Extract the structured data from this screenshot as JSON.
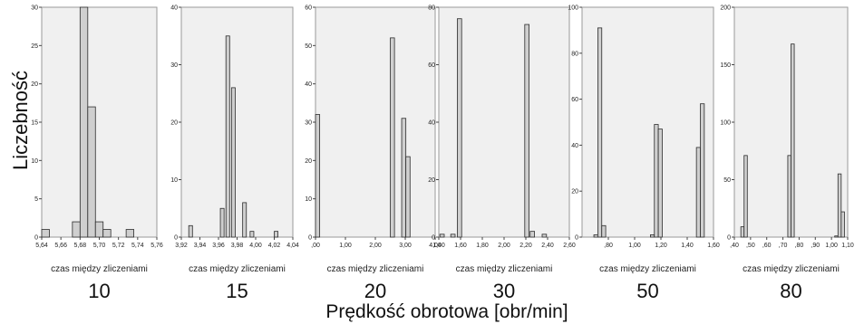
{
  "y_label": "Liczebność",
  "x_label": "Prędkość obrotowa [obr/min]",
  "chart_data": [
    {
      "type": "bar",
      "subtitle": "czas między zliczeniami",
      "speed": "10",
      "ylim": [
        0,
        30
      ],
      "yticks": [
        0,
        5,
        10,
        15,
        20,
        25,
        30
      ],
      "ytick_labels": [
        "0",
        "5",
        "10",
        "15",
        "20",
        "25",
        "30"
      ],
      "xlim": [
        5.64,
        5.76
      ],
      "xticks": [
        5.64,
        5.66,
        5.68,
        5.7,
        5.72,
        5.74,
        5.76
      ],
      "xtick_labels": [
        "5,64",
        "5,66",
        "5,68",
        "5,70",
        "5,72",
        "5,74",
        "5,76"
      ],
      "bins": [
        {
          "x0": 5.64,
          "x1": 5.648,
          "value": 1
        },
        {
          "x0": 5.672,
          "x1": 5.68,
          "value": 2
        },
        {
          "x0": 5.68,
          "x1": 5.688,
          "value": 30
        },
        {
          "x0": 5.688,
          "x1": 5.696,
          "value": 17
        },
        {
          "x0": 5.696,
          "x1": 5.704,
          "value": 2
        },
        {
          "x0": 5.704,
          "x1": 5.712,
          "value": 1
        },
        {
          "x0": 5.728,
          "x1": 5.736,
          "value": 1
        }
      ]
    },
    {
      "type": "bar",
      "subtitle": "czas między zliczeniami",
      "speed": "15",
      "ylim": [
        0,
        40
      ],
      "yticks": [
        0,
        10,
        20,
        30,
        40
      ],
      "ytick_labels": [
        "0",
        "10",
        "20",
        "30",
        "40"
      ],
      "xlim": [
        3.92,
        4.04
      ],
      "xticks": [
        3.92,
        3.94,
        3.96,
        3.98,
        4.0,
        4.02,
        4.04
      ],
      "xtick_labels": [
        "3,92",
        "3,94",
        "3,96",
        "3,98",
        "4,00",
        "4,02",
        "4,04"
      ],
      "bins": [
        {
          "x0": 3.928,
          "x1": 3.932,
          "value": 2
        },
        {
          "x0": 3.962,
          "x1": 3.966,
          "value": 5
        },
        {
          "x0": 3.968,
          "x1": 3.972,
          "value": 35
        },
        {
          "x0": 3.974,
          "x1": 3.978,
          "value": 26
        },
        {
          "x0": 3.986,
          "x1": 3.99,
          "value": 6
        },
        {
          "x0": 3.994,
          "x1": 3.998,
          "value": 1
        },
        {
          "x0": 4.02,
          "x1": 4.024,
          "value": 1
        }
      ]
    },
    {
      "type": "bar",
      "subtitle": "czas między zliczeniami",
      "speed": "20",
      "ylim": [
        0,
        60
      ],
      "yticks": [
        0,
        10,
        20,
        30,
        40,
        50,
        60
      ],
      "ytick_labels": [
        "0",
        "10",
        "20",
        "30",
        "40",
        "50",
        "60"
      ],
      "xlim": [
        0,
        4.0
      ],
      "xticks": [
        0,
        1.0,
        2.0,
        3.0,
        4.0
      ],
      "xtick_labels": [
        ",00",
        "1,00",
        "2,00",
        "3,00",
        "4,00"
      ],
      "bins": [
        {
          "x0": 0.0,
          "x1": 0.14,
          "value": 32
        },
        {
          "x0": 2.5,
          "x1": 2.64,
          "value": 52
        },
        {
          "x0": 2.88,
          "x1": 3.02,
          "value": 31
        },
        {
          "x0": 3.02,
          "x1": 3.16,
          "value": 21
        }
      ]
    },
    {
      "type": "bar",
      "subtitle": "czas między zliczeniami",
      "speed": "30",
      "ylim": [
        0,
        80
      ],
      "yticks": [
        0,
        20,
        40,
        60,
        80
      ],
      "ytick_labels": [
        "0",
        "20",
        "40",
        "60",
        "80"
      ],
      "xlim": [
        1.4,
        2.6
      ],
      "xticks": [
        1.4,
        1.6,
        1.8,
        2.0,
        2.2,
        2.4,
        2.6
      ],
      "xtick_labels": [
        "1,40",
        "1,60",
        "1,80",
        "2,00",
        "2,20",
        "2,40",
        "2,60"
      ],
      "bins": [
        {
          "x0": 1.41,
          "x1": 1.45,
          "value": 1
        },
        {
          "x0": 1.51,
          "x1": 1.55,
          "value": 1
        },
        {
          "x0": 1.57,
          "x1": 1.61,
          "value": 76
        },
        {
          "x0": 2.19,
          "x1": 2.23,
          "value": 74
        },
        {
          "x0": 2.24,
          "x1": 2.28,
          "value": 2
        },
        {
          "x0": 2.35,
          "x1": 2.39,
          "value": 1
        }
      ]
    },
    {
      "type": "bar",
      "subtitle": "czas między zliczeniami",
      "speed": "50",
      "ylim": [
        0,
        100
      ],
      "yticks": [
        0,
        20,
        40,
        60,
        80,
        100
      ],
      "ytick_labels": [
        "0",
        "20",
        "40",
        "60",
        "80",
        "100"
      ],
      "xlim": [
        0.6,
        1.6
      ],
      "xticks": [
        0.8,
        1.0,
        1.2,
        1.4,
        1.6
      ],
      "xtick_labels": [
        ",80",
        "1,00",
        "1,20",
        "1,40",
        "1,60"
      ],
      "bins": [
        {
          "x0": 0.69,
          "x1": 0.72,
          "value": 1
        },
        {
          "x0": 0.72,
          "x1": 0.75,
          "value": 91
        },
        {
          "x0": 0.75,
          "x1": 0.78,
          "value": 5
        },
        {
          "x0": 1.12,
          "x1": 1.15,
          "value": 1
        },
        {
          "x0": 1.15,
          "x1": 1.18,
          "value": 49
        },
        {
          "x0": 1.18,
          "x1": 1.21,
          "value": 47
        },
        {
          "x0": 1.47,
          "x1": 1.5,
          "value": 39
        },
        {
          "x0": 1.5,
          "x1": 1.53,
          "value": 58
        }
      ]
    },
    {
      "type": "bar",
      "subtitle": "czas między zliczeniami",
      "speed": "80",
      "ylim": [
        0,
        200
      ],
      "yticks": [
        0,
        50,
        100,
        150,
        200
      ],
      "ytick_labels": [
        "0",
        "50",
        "100",
        "150",
        "200"
      ],
      "xlim": [
        0.4,
        1.1
      ],
      "xticks": [
        0.4,
        0.5,
        0.6,
        0.7,
        0.8,
        0.9,
        1.0,
        1.1
      ],
      "xtick_labels": [
        ",40",
        ",50",
        ",60",
        ",70",
        ",80",
        ",90",
        "1,00",
        "1,10"
      ],
      "bins": [
        {
          "x0": 0.44,
          "x1": 0.46,
          "value": 9
        },
        {
          "x0": 0.46,
          "x1": 0.48,
          "value": 71
        },
        {
          "x0": 0.73,
          "x1": 0.75,
          "value": 71
        },
        {
          "x0": 0.75,
          "x1": 0.77,
          "value": 168
        },
        {
          "x0": 1.02,
          "x1": 1.04,
          "value": 1
        },
        {
          "x0": 1.04,
          "x1": 1.06,
          "value": 55
        },
        {
          "x0": 1.06,
          "x1": 1.08,
          "value": 22
        }
      ]
    }
  ]
}
